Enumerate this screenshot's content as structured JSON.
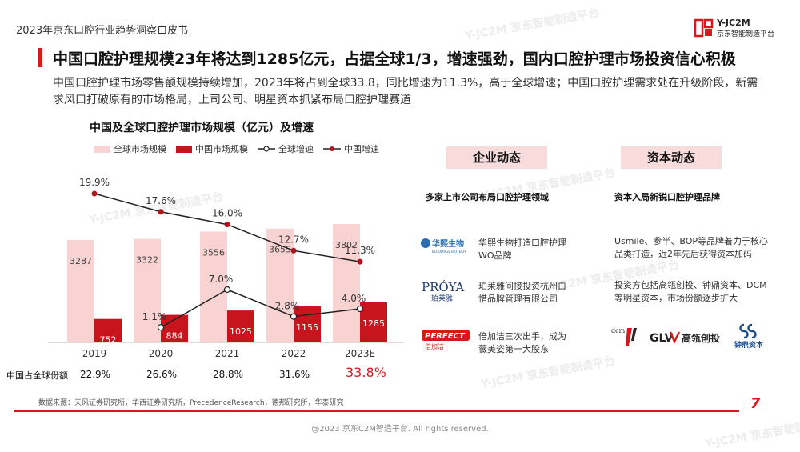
{
  "header": {
    "doc_title": "2023年京东口腔行业趋势洞察白皮书",
    "logo_line1": "Y-JC2M",
    "logo_line2": "京东智能制造平台"
  },
  "headline": "中国口腔护理规模23年将达到1285亿元，占据全球1/3，增速强劲，国内口腔护理市场投资信心积极",
  "summary": "中国口腔护理市场零售额规模持续增加，2023年将占到全球33.8，同比增速为11.3%，高于全球增速；中国口腔护理需求处在升级阶段，新需求风口打破原有的市场格局，上司公司、明星资本抓紧布局口腔护理赛道",
  "chart_title": "中国及全球口腔护理市场规模（亿元）及增速",
  "chart_data": {
    "type": "bar",
    "title": "中国及全球口腔护理市场规模（亿元）及增速",
    "categories": [
      "2019",
      "2020",
      "2021",
      "2022",
      "2023E"
    ],
    "series": [
      {
        "name": "全球市场规模",
        "kind": "bar",
        "color": "#f9d2d2",
        "values": [
          3287,
          3322,
          3556,
          3655,
          3802
        ],
        "labels": [
          "3287",
          "3322",
          "3556",
          "3655",
          "3802"
        ]
      },
      {
        "name": "中国市场规模",
        "kind": "bar",
        "color": "#c8141c",
        "values": [
          752,
          884,
          1025,
          1155,
          1285
        ],
        "labels": [
          "752",
          "884",
          "1025",
          "1155",
          "1285"
        ]
      },
      {
        "name": "全球增速",
        "kind": "line",
        "color": "#222222",
        "values": [
          null,
          1.1,
          7.0,
          2.8,
          4.0
        ],
        "labels": [
          "",
          "1.1%",
          "7.0%",
          "2.8%",
          "4.0%"
        ]
      },
      {
        "name": "中国增速",
        "kind": "line",
        "color": "#b0141c",
        "values": [
          19.9,
          17.6,
          16.0,
          12.7,
          11.3
        ],
        "labels": [
          "19.9%",
          "17.6%",
          "16.0%",
          "12.7%",
          "11.3%"
        ]
      }
    ],
    "bar_ylim": [
      0,
      4000
    ],
    "line_ylim": [
      0,
      25
    ],
    "legend_position": "top",
    "grid": false,
    "share_row_label": "中国占全球份额",
    "share_values": [
      "22.9%",
      "26.6%",
      "28.8%",
      "31.6%",
      "33.8%"
    ]
  },
  "enterprise": {
    "section_label": "企业动态",
    "subtitle": "多家上市公司布局口腔护理领域",
    "items": [
      {
        "logo": "华熙生物",
        "logo_sub": "BLOOMAGE BIOTECH",
        "text": "华熙生物打造口腔护理WO品牌"
      },
      {
        "logo": "PROYA",
        "logo_sub": "珀莱雅",
        "text": "珀莱雅间接投资杭州白惜品牌管理有限公司"
      },
      {
        "logo": "PERFECT",
        "logo_sub": "倍加洁",
        "text": "倍加洁三次出手，成为薇美姿第一大股东"
      }
    ]
  },
  "capital": {
    "section_label": "资本动态",
    "subtitle": "资本入局新锐口腔护理品牌",
    "items": [
      {
        "text": "Usmile、参半、BOP等品牌着力于核心品类打造，近2年先后获得资本加码"
      },
      {
        "text": "投资方包括高瓴创投、钟鼎资本、DCM等明星资本，市场份额逐步扩大"
      }
    ],
    "logos": [
      {
        "name": "dcm",
        "text": "dcm"
      },
      {
        "name": "glv",
        "text": "GLV",
        "sub": "高瓴创投"
      },
      {
        "name": "zhongding",
        "text": "钟鼎资本"
      }
    ]
  },
  "footer": {
    "source": "数据来源：天风证券研究所，华西证券研究所，PrecedenceResearch，德邦研究所，华泰研究",
    "page_number": "7",
    "copyright": "@2023 京东C2M智造平台. All rights reserved."
  },
  "watermark": "Y-JC2M 京东智能制造平台",
  "colors": {
    "accent": "#d7191d",
    "pink": "#f8dcdc"
  }
}
